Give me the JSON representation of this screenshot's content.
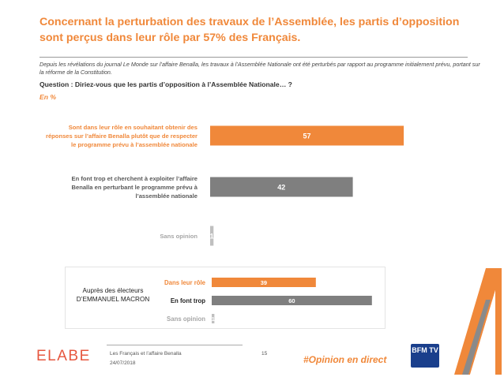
{
  "header": {
    "title": "Concernant la perturbation des travaux de l’Assemblée, les partis d’opposition sont perçus dans leur rôle par 57% des Français.",
    "context": "Depuis les révélations du journal Le Monde sur l’affaire Benalla, les travaux à l’Assemblée Nationale ont été perturbés par rapport au programme initialement prévu, portant sur la réforme de la Constitution.",
    "question": "Question : Diriez-vous que les partis d’opposition à l’Assemblée Nationale… ?",
    "unit": "En  %"
  },
  "chart_data": [
    {
      "type": "bar",
      "orientation": "horizontal",
      "categories": [
        "Sont dans leur rôle en souhaitant obtenir des réponses sur l’affaire Benalla plutôt que de respecter le programme prévu à l’assemblée nationale",
        "En font trop et cherchent à exploiter l’affaire Benalla en perturbant le programme prévu à l’assemblée nationale",
        "Sans opinion"
      ],
      "category_lines": [
        [
          "Sont dans leur rôle en souhaitant obtenir des",
          "réponses sur l’affaire Benalla plutôt que de respecter",
          "le programme prévu à l’assemblée nationale"
        ],
        [
          "En font trop et cherchent à exploiter l’affaire",
          "Benalla en perturbant le programme prévu à",
          "l’assemblée nationale"
        ],
        [
          "Sans opinion"
        ]
      ],
      "values": [
        57,
        42,
        1
      ],
      "value_labels": [
        "57",
        "42",
        "1"
      ],
      "colors": [
        "#f0883a",
        "#7f7f7f",
        "#bfbfbf"
      ],
      "label_colors": [
        "#f0883a",
        "#595959",
        "#a6a6a6"
      ],
      "xlim": [
        0,
        100
      ]
    },
    {
      "type": "bar",
      "orientation": "horizontal",
      "group_label": [
        "Auprès des électeurs",
        "D’EMMANUEL MACRON"
      ],
      "categories": [
        "Dans leur rôle",
        "En font trop",
        "Sans opinion"
      ],
      "values": [
        39,
        60,
        1
      ],
      "value_labels": [
        "39",
        "60",
        "1"
      ],
      "colors": [
        "#f0883a",
        "#7f7f7f",
        "#bfbfbf"
      ],
      "label_colors": [
        "#f0883a",
        "#222222",
        "#a6a6a6"
      ],
      "xlim": [
        0,
        100
      ]
    }
  ],
  "footer": {
    "logo": "ELABE",
    "study": "Les Français et l’affaire Benalla",
    "date": "24/07/2018",
    "page": "15",
    "hashtag": "#Opinion en direct",
    "channel_logo": "BFM TV"
  }
}
